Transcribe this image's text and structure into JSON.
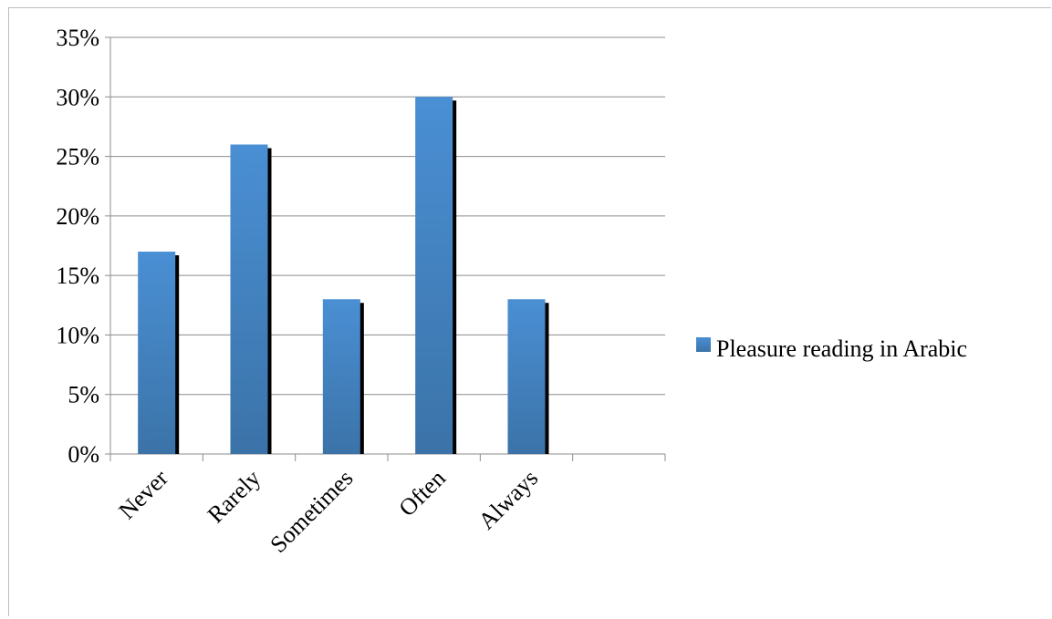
{
  "chart_data": {
    "type": "bar",
    "categories": [
      "Never",
      "Rarely",
      "Sometimes",
      "Often",
      "Always"
    ],
    "series": [
      {
        "name": "Pleasure reading in Arabic",
        "values": [
          17,
          26,
          13,
          30,
          13
        ]
      }
    ],
    "ylim": [
      0,
      35
    ],
    "y_ticks": [
      "0%",
      "5%",
      "10%",
      "15%",
      "20%",
      "25%",
      "30%",
      "35%"
    ],
    "grid": true,
    "legend_position": "right",
    "bar_color": "#4a8fd4",
    "bar_color_dark": "#3b73a8",
    "shadow_color": "#000000"
  }
}
